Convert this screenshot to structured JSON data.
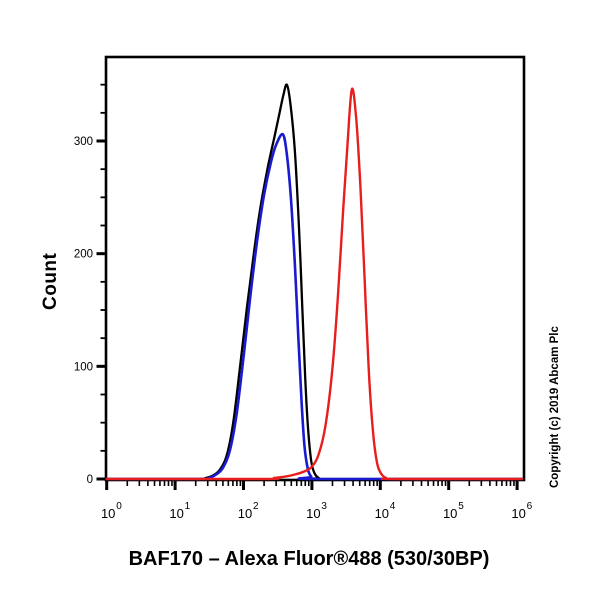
{
  "figure": {
    "copyright": "Copyright (c) 2019 Abcam Plc"
  },
  "chart_data": {
    "type": "line",
    "subtype": "flow-cytometry-histogram",
    "title": "BAF170 – Alexa Fluor®488 (530/30BP)",
    "xlabel": "",
    "ylabel": "Count",
    "legend": "none",
    "grid": false,
    "x_axis": {
      "scale": "log10",
      "min_exponent": 0,
      "max_exponent": 6,
      "tick_label_base": "10",
      "major_tick_exponents": [
        0,
        1,
        2,
        3,
        4,
        5,
        6
      ],
      "minor_tick_mantissas": [
        2,
        3,
        4,
        5,
        6,
        7,
        8,
        9
      ]
    },
    "y_axis": {
      "label": "Count",
      "major_ticks": [
        0,
        100,
        200,
        300
      ],
      "minor_tick_step": 25,
      "minor_tick_max": 350,
      "max": 374
    },
    "series": [
      {
        "name": "black",
        "color": "#000000",
        "stroke_width": 2.3,
        "peak_log_x": 2.635,
        "peak_count": 350,
        "points": [
          [
            0,
            0
          ],
          [
            1.3,
            0
          ],
          [
            1.45,
            1
          ],
          [
            1.55,
            3
          ],
          [
            1.65,
            8
          ],
          [
            1.75,
            20
          ],
          [
            1.85,
            50
          ],
          [
            1.95,
            100
          ],
          [
            2.05,
            152
          ],
          [
            2.15,
            200
          ],
          [
            2.25,
            242
          ],
          [
            2.35,
            275
          ],
          [
            2.45,
            303
          ],
          [
            2.52,
            323
          ],
          [
            2.58,
            340
          ],
          [
            2.635,
            350
          ],
          [
            2.69,
            331
          ],
          [
            2.75,
            292
          ],
          [
            2.81,
            225
          ],
          [
            2.86,
            152
          ],
          [
            2.9,
            92
          ],
          [
            2.94,
            48
          ],
          [
            2.99,
            16
          ],
          [
            3.04,
            5
          ],
          [
            3.1,
            1
          ],
          [
            3.2,
            0
          ],
          [
            6.07,
            0
          ]
        ]
      },
      {
        "name": "blue",
        "color": "#1a1ad0",
        "stroke_width": 2.6,
        "peak_log_x": 2.575,
        "peak_count": 306,
        "points": [
          [
            0,
            0
          ],
          [
            1.35,
            0
          ],
          [
            1.5,
            1
          ],
          [
            1.6,
            4
          ],
          [
            1.7,
            10
          ],
          [
            1.8,
            25
          ],
          [
            1.9,
            58
          ],
          [
            2.0,
            108
          ],
          [
            2.1,
            162
          ],
          [
            2.2,
            212
          ],
          [
            2.3,
            252
          ],
          [
            2.4,
            281
          ],
          [
            2.48,
            297
          ],
          [
            2.575,
            306
          ],
          [
            2.63,
            290
          ],
          [
            2.69,
            252
          ],
          [
            2.75,
            192
          ],
          [
            2.8,
            128
          ],
          [
            2.85,
            68
          ],
          [
            2.89,
            30
          ],
          [
            2.94,
            9
          ],
          [
            2.99,
            2
          ],
          [
            3.05,
            0
          ],
          [
            6.07,
            0
          ]
        ]
      },
      {
        "name": "red",
        "color": "#e81e1e",
        "stroke_width": 2.4,
        "peak_log_x": 3.585,
        "peak_count": 346,
        "points": [
          [
            0,
            0
          ],
          [
            2.3,
            0
          ],
          [
            2.45,
            1
          ],
          [
            2.6,
            2
          ],
          [
            2.75,
            4
          ],
          [
            2.9,
            7
          ],
          [
            3.0,
            11
          ],
          [
            3.1,
            22
          ],
          [
            3.2,
            48
          ],
          [
            3.3,
            98
          ],
          [
            3.38,
            162
          ],
          [
            3.45,
            232
          ],
          [
            3.52,
            297
          ],
          [
            3.585,
            346
          ],
          [
            3.65,
            318
          ],
          [
            3.71,
            258
          ],
          [
            3.77,
            178
          ],
          [
            3.83,
            98
          ],
          [
            3.89,
            44
          ],
          [
            3.95,
            15
          ],
          [
            4.01,
            5
          ],
          [
            4.08,
            1
          ],
          [
            4.2,
            0
          ],
          [
            6.07,
            0
          ]
        ]
      }
    ]
  }
}
